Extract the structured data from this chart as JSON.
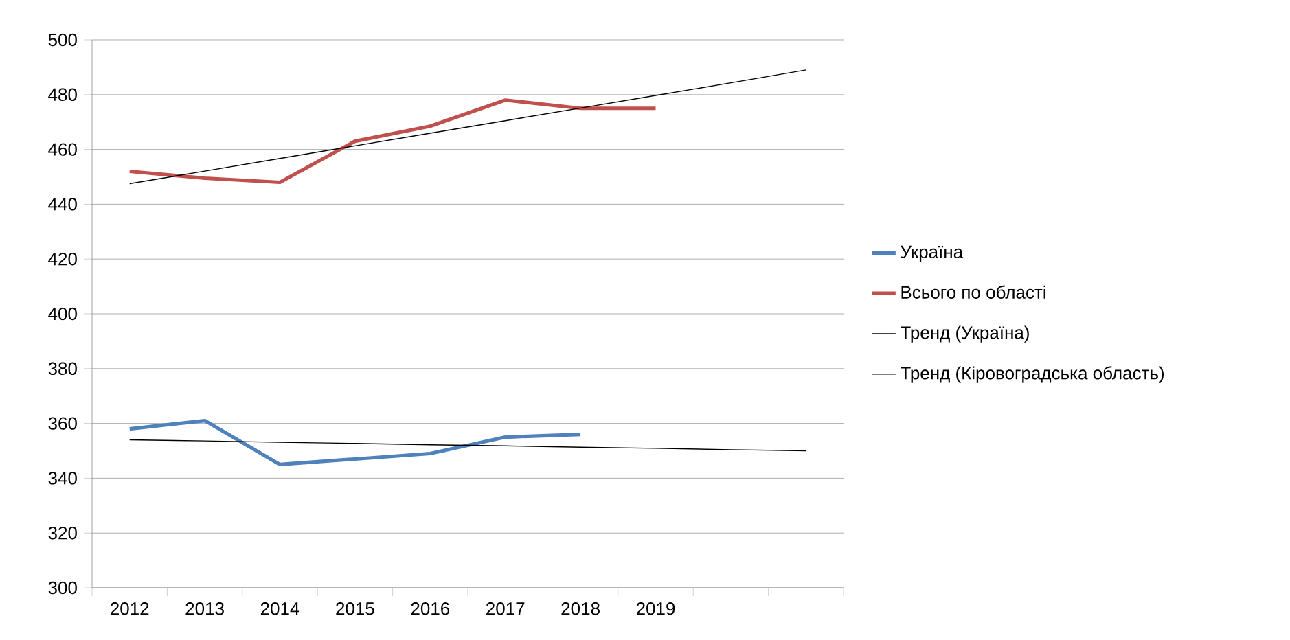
{
  "chart_data": {
    "type": "line",
    "categories": [
      "2012",
      "2013",
      "2014",
      "2015",
      "2016",
      "2017",
      "2018",
      "2019",
      null,
      null
    ],
    "series": [
      {
        "name": "Україна",
        "color": "#4f81bd",
        "values": [
          358,
          361,
          345,
          347,
          349,
          355,
          356,
          null,
          null,
          null
        ]
      },
      {
        "name": "Всього по області",
        "color": "#c0504d",
        "values": [
          452,
          449.5,
          448,
          463,
          468.5,
          478,
          475,
          475,
          null,
          null
        ]
      },
      {
        "name": "Тренд (Україна)",
        "color": "#000000",
        "values": [
          354,
          353.6,
          353.1,
          352.7,
          352.2,
          351.8,
          351.3,
          350.9,
          350.4,
          350
        ]
      },
      {
        "name": "Тренд (Кіровоградська область)",
        "color": "#000000",
        "values": [
          447.5,
          452.1,
          456.7,
          461.3,
          465.9,
          470.5,
          475.1,
          479.7,
          484.3,
          489
        ]
      }
    ],
    "ylim": [
      300,
      500
    ],
    "yticks": [
      300,
      320,
      340,
      360,
      380,
      400,
      420,
      440,
      460,
      480,
      500
    ],
    "grid": "y",
    "legend": "right"
  }
}
